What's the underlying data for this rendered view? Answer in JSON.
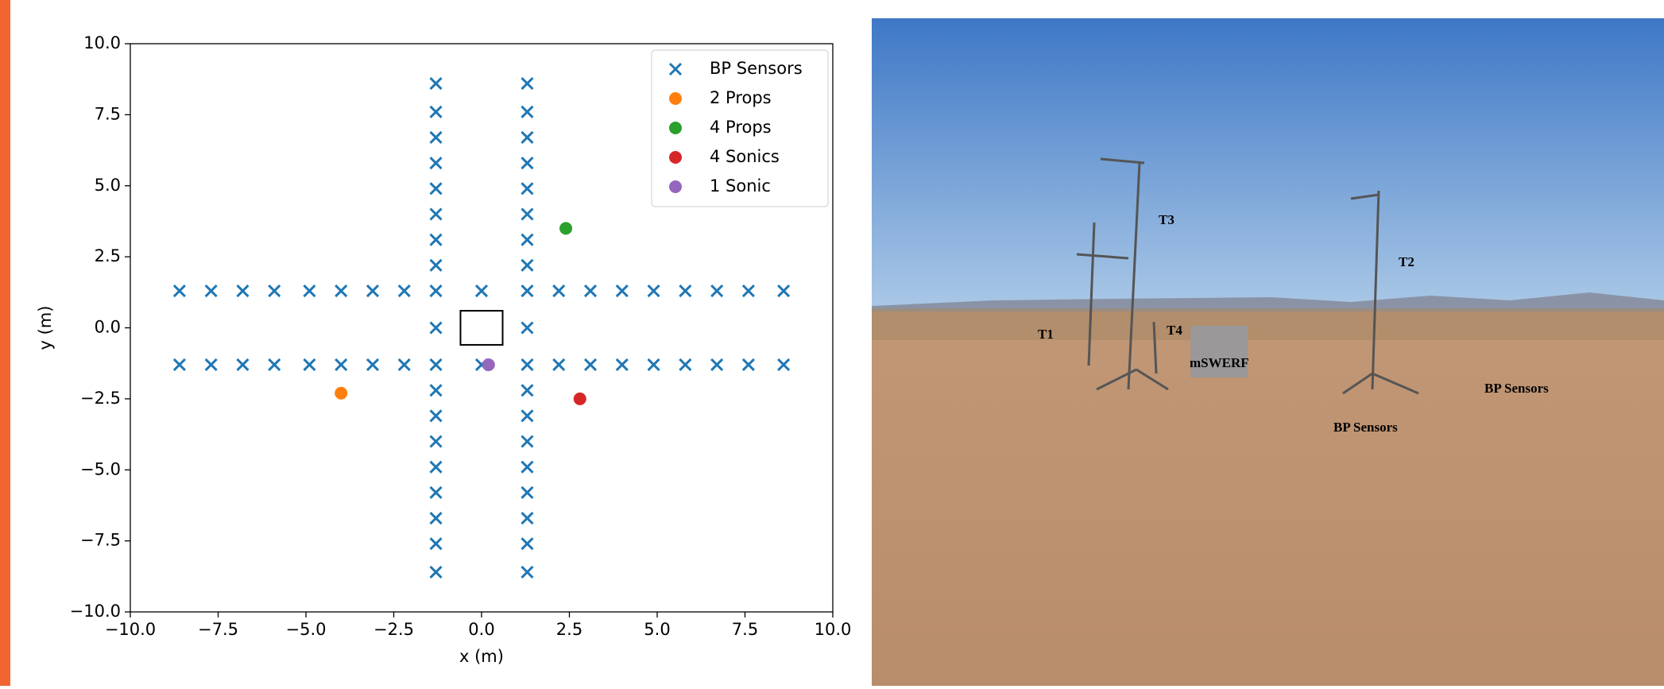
{
  "chart_data": {
    "type": "scatter",
    "xlabel": "x (m)",
    "ylabel": "y (m)",
    "xlim": [
      -10,
      10
    ],
    "ylim": [
      -10,
      10
    ],
    "xticks": [
      {
        "value": -10,
        "label": "−10.0"
      },
      {
        "value": -7.5,
        "label": "−7.5"
      },
      {
        "value": -5,
        "label": "−5.0"
      },
      {
        "value": -2.5,
        "label": "−2.5"
      },
      {
        "value": 0,
        "label": "0.0"
      },
      {
        "value": 2.5,
        "label": "2.5"
      },
      {
        "value": 5,
        "label": "5.0"
      },
      {
        "value": 7.5,
        "label": "7.5"
      },
      {
        "value": 10,
        "label": "10.0"
      }
    ],
    "yticks": [
      {
        "value": -10,
        "label": "−10.0"
      },
      {
        "value": -7.5,
        "label": "−7.5"
      },
      {
        "value": -5,
        "label": "−5.0"
      },
      {
        "value": -2.5,
        "label": "−2.5"
      },
      {
        "value": 0,
        "label": "0.0"
      },
      {
        "value": 2.5,
        "label": "2.5"
      },
      {
        "value": 5,
        "label": "5.0"
      },
      {
        "value": 7.5,
        "label": "7.5"
      },
      {
        "value": 10,
        "label": "10.0"
      }
    ],
    "legend": "upper right",
    "rectangle": {
      "x": [
        -0.6,
        0.6
      ],
      "y": [
        -0.6,
        0.6
      ]
    },
    "series": [
      {
        "name": "BP Sensors",
        "color": "#1f77b4",
        "marker": "x",
        "x": [
          -8.6,
          -7.7,
          -6.8,
          -5.9,
          -4.9,
          -4.0,
          -3.1,
          -2.2,
          -1.3,
          0,
          1.3,
          2.2,
          3.1,
          4.0,
          4.9,
          5.8,
          6.7,
          7.6,
          8.6,
          -8.6,
          -7.7,
          -6.8,
          -5.9,
          -4.9,
          -4.0,
          -3.1,
          -2.2,
          -1.3,
          0,
          1.3,
          2.2,
          3.1,
          4.0,
          4.9,
          5.8,
          6.7,
          7.6,
          8.6,
          -1.3,
          -1.3,
          -1.3,
          -1.3,
          -1.3,
          -1.3,
          -1.3,
          -1.3,
          -1.3,
          -1.3,
          -1.3,
          -1.3,
          -1.3,
          -1.3,
          -1.3,
          -1.3,
          -1.3,
          1.3,
          1.3,
          1.3,
          1.3,
          1.3,
          1.3,
          1.3,
          1.3,
          1.3,
          1.3,
          1.3,
          1.3,
          1.3,
          1.3,
          1.3,
          1.3,
          1.3
        ],
        "values": [
          1.3,
          1.3,
          1.3,
          1.3,
          1.3,
          1.3,
          1.3,
          1.3,
          1.3,
          1.3,
          1.3,
          1.3,
          1.3,
          1.3,
          1.3,
          1.3,
          1.3,
          1.3,
          1.3,
          -1.3,
          -1.3,
          -1.3,
          -1.3,
          -1.3,
          -1.3,
          -1.3,
          -1.3,
          -1.3,
          -1.3,
          -1.3,
          -1.3,
          -1.3,
          -1.3,
          -1.3,
          -1.3,
          -1.3,
          -1.3,
          -1.3,
          8.6,
          7.6,
          6.7,
          5.8,
          4.9,
          4.0,
          3.1,
          2.2,
          0,
          -2.2,
          -3.1,
          -4.0,
          -4.9,
          -5.8,
          -6.7,
          -7.6,
          -8.6,
          8.6,
          7.6,
          6.7,
          5.8,
          4.9,
          4.0,
          3.1,
          2.2,
          0,
          -2.2,
          -3.1,
          -4.0,
          -4.9,
          -5.8,
          -6.7,
          -7.6,
          -8.6
        ]
      },
      {
        "name": "2 Props",
        "color": "#ff7f0e",
        "marker": "o",
        "x": [
          -4.0
        ],
        "values": [
          -2.3
        ]
      },
      {
        "name": "4 Props",
        "color": "#2ca02c",
        "marker": "o",
        "x": [
          2.4
        ],
        "values": [
          3.5
        ]
      },
      {
        "name": "4 Sonics",
        "color": "#d62728",
        "marker": "o",
        "x": [
          2.8
        ],
        "values": [
          -2.5
        ]
      },
      {
        "name": "1 Sonic",
        "color": "#9467bd",
        "marker": "o",
        "x": [
          0.2
        ],
        "values": [
          -1.3
        ]
      }
    ]
  },
  "photo": {
    "labels": [
      "T3",
      "T2",
      "T1",
      "T4",
      "mSWERF",
      "BP Sensors",
      "BP Sensors"
    ]
  }
}
